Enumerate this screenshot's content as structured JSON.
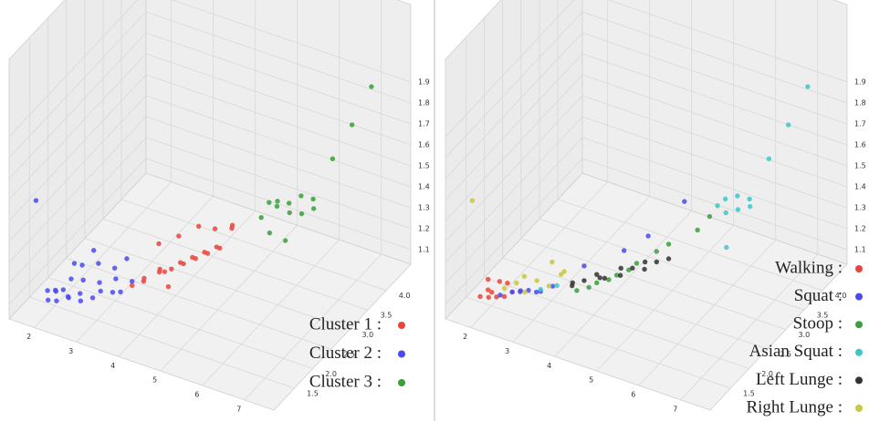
{
  "chart_data": [
    {
      "type": "scatter3d",
      "xlim": [
        1.4,
        7.7
      ],
      "ylim": [
        0.94,
        4.67
      ],
      "zlim": [
        1.03,
        2.27
      ],
      "xticks": [
        2,
        3,
        4,
        5,
        6,
        7
      ],
      "yticks": [
        1.5,
        {
          "value": 2,
          "label": "2.0"
        },
        2.5,
        {
          "value": 3,
          "label": "3.0"
        },
        3.5,
        {
          "value": 4,
          "label": "4.0"
        }
      ],
      "zticks": [
        1.1,
        1.2,
        1.3,
        1.4,
        1.5,
        1.6,
        1.7,
        1.8,
        1.9
      ],
      "grid": true,
      "series": [
        {
          "name": "Cluster 1 :",
          "color": "#e8453c",
          "x": [
            3.4,
            3.5,
            3.6,
            3.7,
            3.8,
            3.9,
            4.0,
            4.1,
            4.2,
            4.3,
            4.4,
            4.5,
            4.6,
            4.7,
            4.8,
            3.6,
            3.9,
            4.2,
            4.5,
            4.9,
            5.0,
            4.0
          ],
          "y": [
            2.0,
            2.2,
            2.1,
            2.4,
            2.3,
            2.5,
            2.2,
            2.6,
            2.4,
            2.7,
            2.5,
            2.8,
            2.6,
            2.9,
            2.7,
            2.5,
            2.7,
            2.9,
            3.0,
            3.0,
            2.9,
            2.3
          ],
          "z": [
            1.13,
            1.12,
            1.16,
            1.14,
            1.18,
            1.15,
            1.2,
            1.17,
            1.22,
            1.19,
            1.24,
            1.21,
            1.26,
            1.23,
            1.28,
            1.25,
            1.27,
            1.3,
            1.29,
            1.32,
            1.36,
            1.11
          ]
        },
        {
          "name": "Cluster 2 :",
          "color": "#4a4af0",
          "x": [
            2.0,
            2.1,
            2.1,
            2.2,
            2.2,
            2.3,
            2.3,
            2.4,
            2.5,
            2.5,
            2.6,
            2.7,
            2.8,
            2.9,
            3.0,
            3.1,
            3.2,
            3.3,
            3.4,
            2.3,
            2.6,
            2.9,
            3.1,
            2.2,
            2.4,
            1.9
          ],
          "y": [
            1.3,
            1.2,
            1.4,
            1.3,
            1.5,
            1.2,
            1.6,
            1.4,
            1.3,
            1.7,
            1.5,
            1.4,
            1.8,
            1.5,
            1.6,
            1.9,
            1.7,
            1.8,
            2.0,
            1.9,
            2.0,
            2.1,
            2.2,
            1.8,
            2.1,
            1.1
          ],
          "z": [
            1.14,
            1.12,
            1.13,
            1.15,
            1.12,
            1.13,
            1.16,
            1.12,
            1.14,
            1.15,
            1.13,
            1.12,
            1.14,
            1.13,
            1.15,
            1.16,
            1.14,
            1.13,
            1.15,
            1.17,
            1.18,
            1.16,
            1.2,
            1.19,
            1.21,
            1.6
          ]
        },
        {
          "name": "Cluster 3 :",
          "color": "#3aa03a",
          "x": [
            5.6,
            5.7,
            5.8,
            5.9,
            6.0,
            6.1,
            6.2,
            6.3,
            6.4,
            6.5,
            5.8,
            6.6,
            6.8,
            7.0,
            6.0
          ],
          "y": [
            3.0,
            3.1,
            3.2,
            3.1,
            3.3,
            3.2,
            3.4,
            3.3,
            3.5,
            3.4,
            3.0,
            3.8,
            4.1,
            4.4,
            3.2
          ],
          "z": [
            1.42,
            1.48,
            1.45,
            1.5,
            1.46,
            1.44,
            1.49,
            1.43,
            1.47,
            1.45,
            1.36,
            1.62,
            1.74,
            1.88,
            1.3
          ]
        }
      ]
    },
    {
      "type": "scatter3d",
      "xlim": [
        1.4,
        7.7
      ],
      "ylim": [
        0.94,
        4.67
      ],
      "zlim": [
        1.03,
        2.27
      ],
      "xticks": [
        2,
        3,
        4,
        5,
        6,
        7
      ],
      "yticks": [
        1.5,
        {
          "value": 2,
          "label": "2.0"
        },
        2.5,
        {
          "value": 3,
          "label": "3.0"
        },
        3.5,
        {
          "value": 4,
          "label": "4.0"
        }
      ],
      "zticks": [
        1.1,
        1.2,
        1.3,
        1.4,
        1.5,
        1.6,
        1.7,
        1.8,
        1.9
      ],
      "grid": true,
      "series": [
        {
          "name": "Walking :",
          "color": "#e8453c",
          "x": [
            2.0,
            2.1,
            2.1,
            2.2,
            2.3,
            2.2,
            2.4,
            2.3,
            2.5,
            2.1
          ],
          "y": [
            1.2,
            1.3,
            1.4,
            1.2,
            1.3,
            1.5,
            1.4,
            1.6,
            1.5,
            1.3
          ],
          "z": [
            1.13,
            1.15,
            1.12,
            1.14,
            1.13,
            1.16,
            1.12,
            1.14,
            1.13,
            1.2
          ]
        },
        {
          "name": "Squat :",
          "color": "#4a4af0",
          "x": [
            2.3,
            2.5,
            2.6,
            2.8,
            3.0,
            3.2,
            3.6,
            4.2,
            4.6,
            5.2,
            2.7,
            2.9
          ],
          "y": [
            1.4,
            1.5,
            1.6,
            1.6,
            1.7,
            1.8,
            2.2,
            2.6,
            2.8,
            3.1,
            1.5,
            1.7
          ],
          "z": [
            1.12,
            1.13,
            1.12,
            1.14,
            1.13,
            1.15,
            1.2,
            1.24,
            1.3,
            1.45,
            1.15,
            1.12
          ]
        },
        {
          "name": "Stoop :",
          "color": "#3aa03a",
          "x": [
            3.6,
            3.9,
            4.2,
            4.5,
            4.8,
            5.0,
            4.4,
            4.1,
            3.8,
            5.6,
            5.8
          ],
          "y": [
            2.0,
            2.2,
            2.4,
            2.6,
            2.8,
            2.9,
            2.5,
            2.3,
            2.1,
            3.0,
            3.1
          ],
          "z": [
            1.12,
            1.14,
            1.16,
            1.2,
            1.24,
            1.27,
            1.18,
            1.15,
            1.13,
            1.36,
            1.42
          ]
        },
        {
          "name": "Asian Squat :",
          "color": "#3cc8c8",
          "x": [
            3.0,
            3.3,
            5.9,
            6.0,
            6.1,
            6.2,
            6.3,
            6.4,
            6.5,
            6.6,
            6.8,
            7.0,
            6.2
          ],
          "y": [
            1.7,
            1.8,
            3.2,
            3.3,
            3.2,
            3.4,
            3.3,
            3.5,
            3.4,
            3.8,
            4.1,
            4.4,
            3.1
          ],
          "z": [
            1.14,
            1.16,
            1.46,
            1.48,
            1.44,
            1.49,
            1.45,
            1.47,
            1.46,
            1.62,
            1.74,
            1.88,
            1.3
          ]
        },
        {
          "name": "Left Lunge :",
          "color": "#333333",
          "x": [
            3.4,
            3.6,
            3.8,
            4.0,
            4.2,
            4.4,
            4.6,
            4.8,
            3.5,
            3.9,
            4.3,
            4.7,
            5.0
          ],
          "y": [
            2.1,
            2.2,
            2.4,
            2.3,
            2.5,
            2.6,
            2.7,
            2.8,
            2.0,
            2.2,
            2.4,
            2.6,
            2.9
          ],
          "z": [
            1.11,
            1.13,
            1.12,
            1.15,
            1.14,
            1.17,
            1.16,
            1.19,
            1.15,
            1.18,
            1.2,
            1.22,
            1.2
          ]
        },
        {
          "name": "Right Lunge :",
          "color": "#c8c83c",
          "x": [
            2.4,
            2.6,
            2.8,
            3.0,
            3.2,
            3.4,
            2.7,
            3.1,
            3.3,
            1.9
          ],
          "y": [
            1.4,
            1.5,
            1.5,
            1.6,
            1.7,
            1.8,
            1.6,
            1.9,
            2.0,
            1.1
          ],
          "z": [
            1.16,
            1.18,
            1.15,
            1.2,
            1.17,
            1.22,
            1.2,
            1.24,
            1.19,
            1.6
          ]
        }
      ]
    }
  ]
}
